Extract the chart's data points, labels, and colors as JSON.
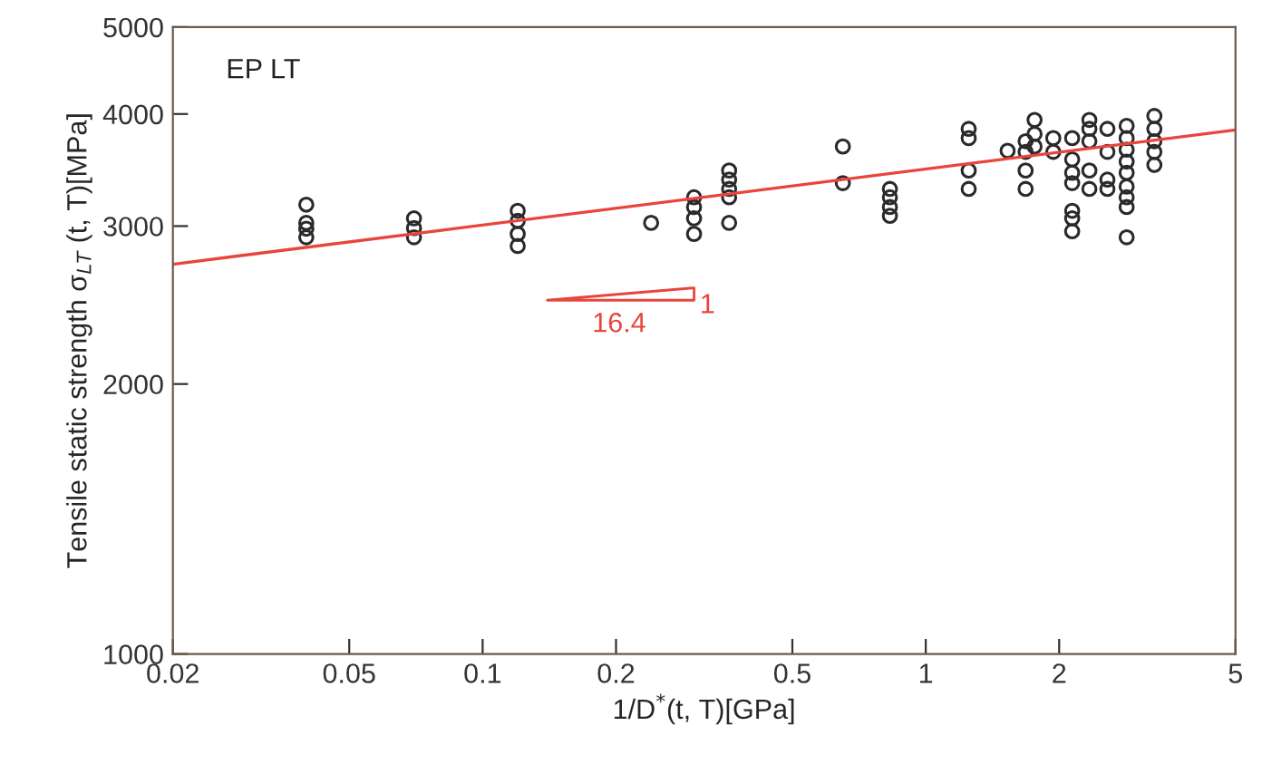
{
  "chart_data": {
    "type": "scatter",
    "xlabel": "1/D$^{*}$(t, T)[GPa]",
    "ylabel": "Tensile static strength σ$_{LT}$ (t, T)[MPa]",
    "log": "xy",
    "xlim": [
      0.02,
      5
    ],
    "ylim": [
      1000,
      5000
    ],
    "xticks": [
      0.02,
      0.05,
      0.1,
      0.2,
      0.5,
      1,
      2,
      5
    ],
    "yticks": [
      1000,
      2000,
      3000,
      4000,
      5000
    ],
    "grid": false,
    "annotations": [
      "EP LT",
      "16.4",
      "1"
    ],
    "series": [
      {
        "color": "#2a2a2a",
        "marker": "circle",
        "x": [
          0.04,
          0.04,
          0.04,
          0.04,
          0.07,
          0.07,
          0.07,
          0.12,
          0.12,
          0.12,
          0.12,
          0.24,
          0.3,
          0.3,
          0.3,
          0.3,
          0.36,
          0.36,
          0.36,
          0.36,
          0.36,
          0.65,
          0.65,
          0.83,
          0.83,
          0.83,
          0.83,
          1.25,
          1.25,
          1.25,
          1.25,
          1.53,
          1.68,
          1.68,
          1.68,
          1.68,
          1.76,
          1.76,
          1.76,
          1.94,
          1.94,
          2.14,
          2.14,
          2.14,
          2.14,
          2.14,
          2.14,
          2.14,
          2.34,
          2.34,
          2.34,
          2.34,
          2.34,
          2.57,
          2.57,
          2.57,
          2.57,
          2.84,
          2.84,
          2.84,
          2.84,
          2.84,
          2.84,
          2.84,
          2.84,
          2.84,
          3.28,
          3.28,
          3.28,
          3.28,
          3.28
        ],
        "values": [
          3170,
          3025,
          2980,
          2915,
          3060,
          2985,
          2915,
          3120,
          3040,
          2940,
          2850,
          3025,
          3230,
          3150,
          3060,
          2940,
          3460,
          3380,
          3300,
          3230,
          3025,
          3680,
          3350,
          3300,
          3230,
          3150,
          3080,
          3850,
          3760,
          3460,
          3300,
          3640,
          3730,
          3630,
          3460,
          3300,
          3940,
          3800,
          3680,
          3760,
          3630,
          3760,
          3560,
          3440,
          3350,
          3120,
          3060,
          2960,
          3940,
          3850,
          3730,
          3460,
          3300,
          3850,
          3630,
          3380,
          3300,
          3880,
          3760,
          3650,
          3540,
          3440,
          3320,
          3230,
          3150,
          2915,
          3980,
          3850,
          3730,
          3630,
          3510
        ]
      },
      {
        "type": "line",
        "color": "#e8453c",
        "x": [
          0.02,
          5
        ],
        "values": [
          2720,
          3840
        ]
      }
    ]
  }
}
